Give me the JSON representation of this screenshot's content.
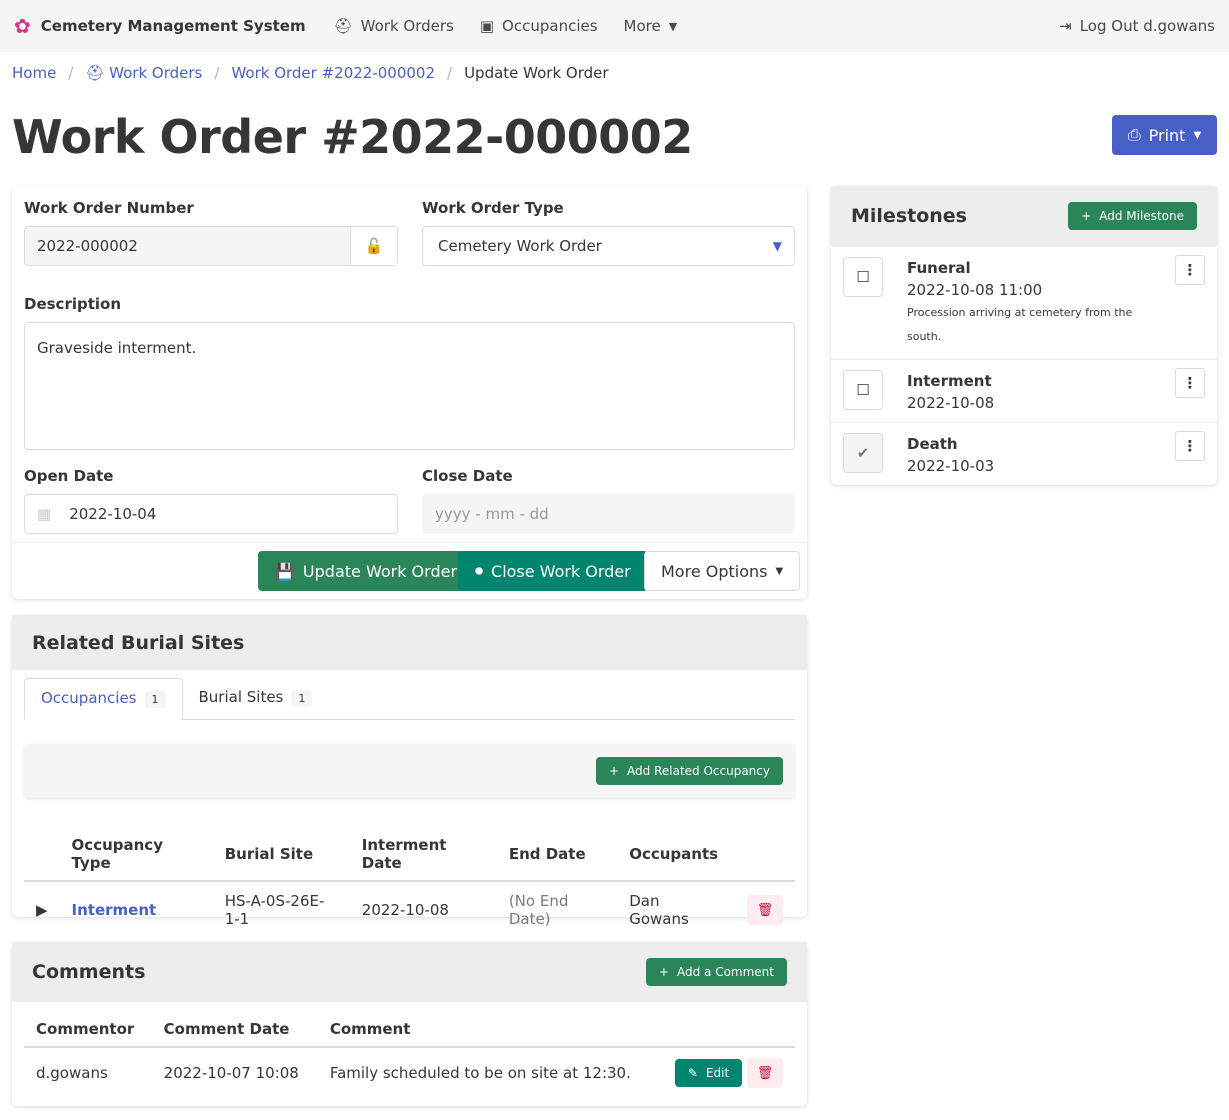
{
  "nav": {
    "brand": "Cemetery Management System",
    "work_orders": "Work Orders",
    "occupancies": "Occupancies",
    "more": "More",
    "logout": "Log Out d.gowans"
  },
  "breadcrumb": [
    "Home",
    "Work Orders",
    "Work Order #2022-000002",
    "Update Work Order"
  ],
  "title": "Work Order #2022-000002",
  "print_label": "Print",
  "form": {
    "number_label": "Work Order Number",
    "number_value": "2022-000002",
    "type_label": "Work Order Type",
    "type_value": "Cemetery Work Order",
    "description_label": "Description",
    "description_value": "Graveside interment.",
    "open_label": "Open Date",
    "open_value": "2022-10-04",
    "close_label": "Close Date",
    "close_placeholder": "yyyy - mm - dd",
    "update": "Update Work Order",
    "close": "Close Work Order",
    "more": "More Options"
  },
  "milestones": {
    "title": "Milestones",
    "add": "Add Milestone",
    "items": [
      {
        "title": "Funeral",
        "date": "2022-10-08 11:00",
        "description": "Procession arriving at cemetery from the south.",
        "done": false
      },
      {
        "title": "Interment",
        "date": "2022-10-08",
        "description": "",
        "done": false
      },
      {
        "title": "Death",
        "date": "2022-10-03",
        "description": "",
        "done": true
      }
    ]
  },
  "related": {
    "title": "Related Burial Sites",
    "tabs": [
      {
        "label": "Occupancies",
        "count": "1"
      },
      {
        "label": "Burial Sites",
        "count": "1"
      }
    ],
    "add": "Add Related Occupancy",
    "columns": [
      "Occupancy Type",
      "Burial Site",
      "Interment Date",
      "End Date",
      "Occupants"
    ],
    "rows": [
      {
        "type": "Interment",
        "site": "HS-A-0S-26E-1-1",
        "date": "2022-10-08",
        "end": "(No End Date)",
        "occupants": "Dan Gowans"
      }
    ]
  },
  "comments": {
    "title": "Comments",
    "add": "Add a Comment",
    "columns": [
      "Commentor",
      "Comment Date",
      "Comment"
    ],
    "rows": [
      {
        "who": "d.gowans",
        "date": "2022-10-07 10:08",
        "text": "Family scheduled to be on site at 12:30.",
        "edit": "Edit"
      }
    ]
  },
  "colors": {
    "link": "#485fc7",
    "green": "#2a8559",
    "teal": "#00866e",
    "danger": "#cc0f35"
  }
}
